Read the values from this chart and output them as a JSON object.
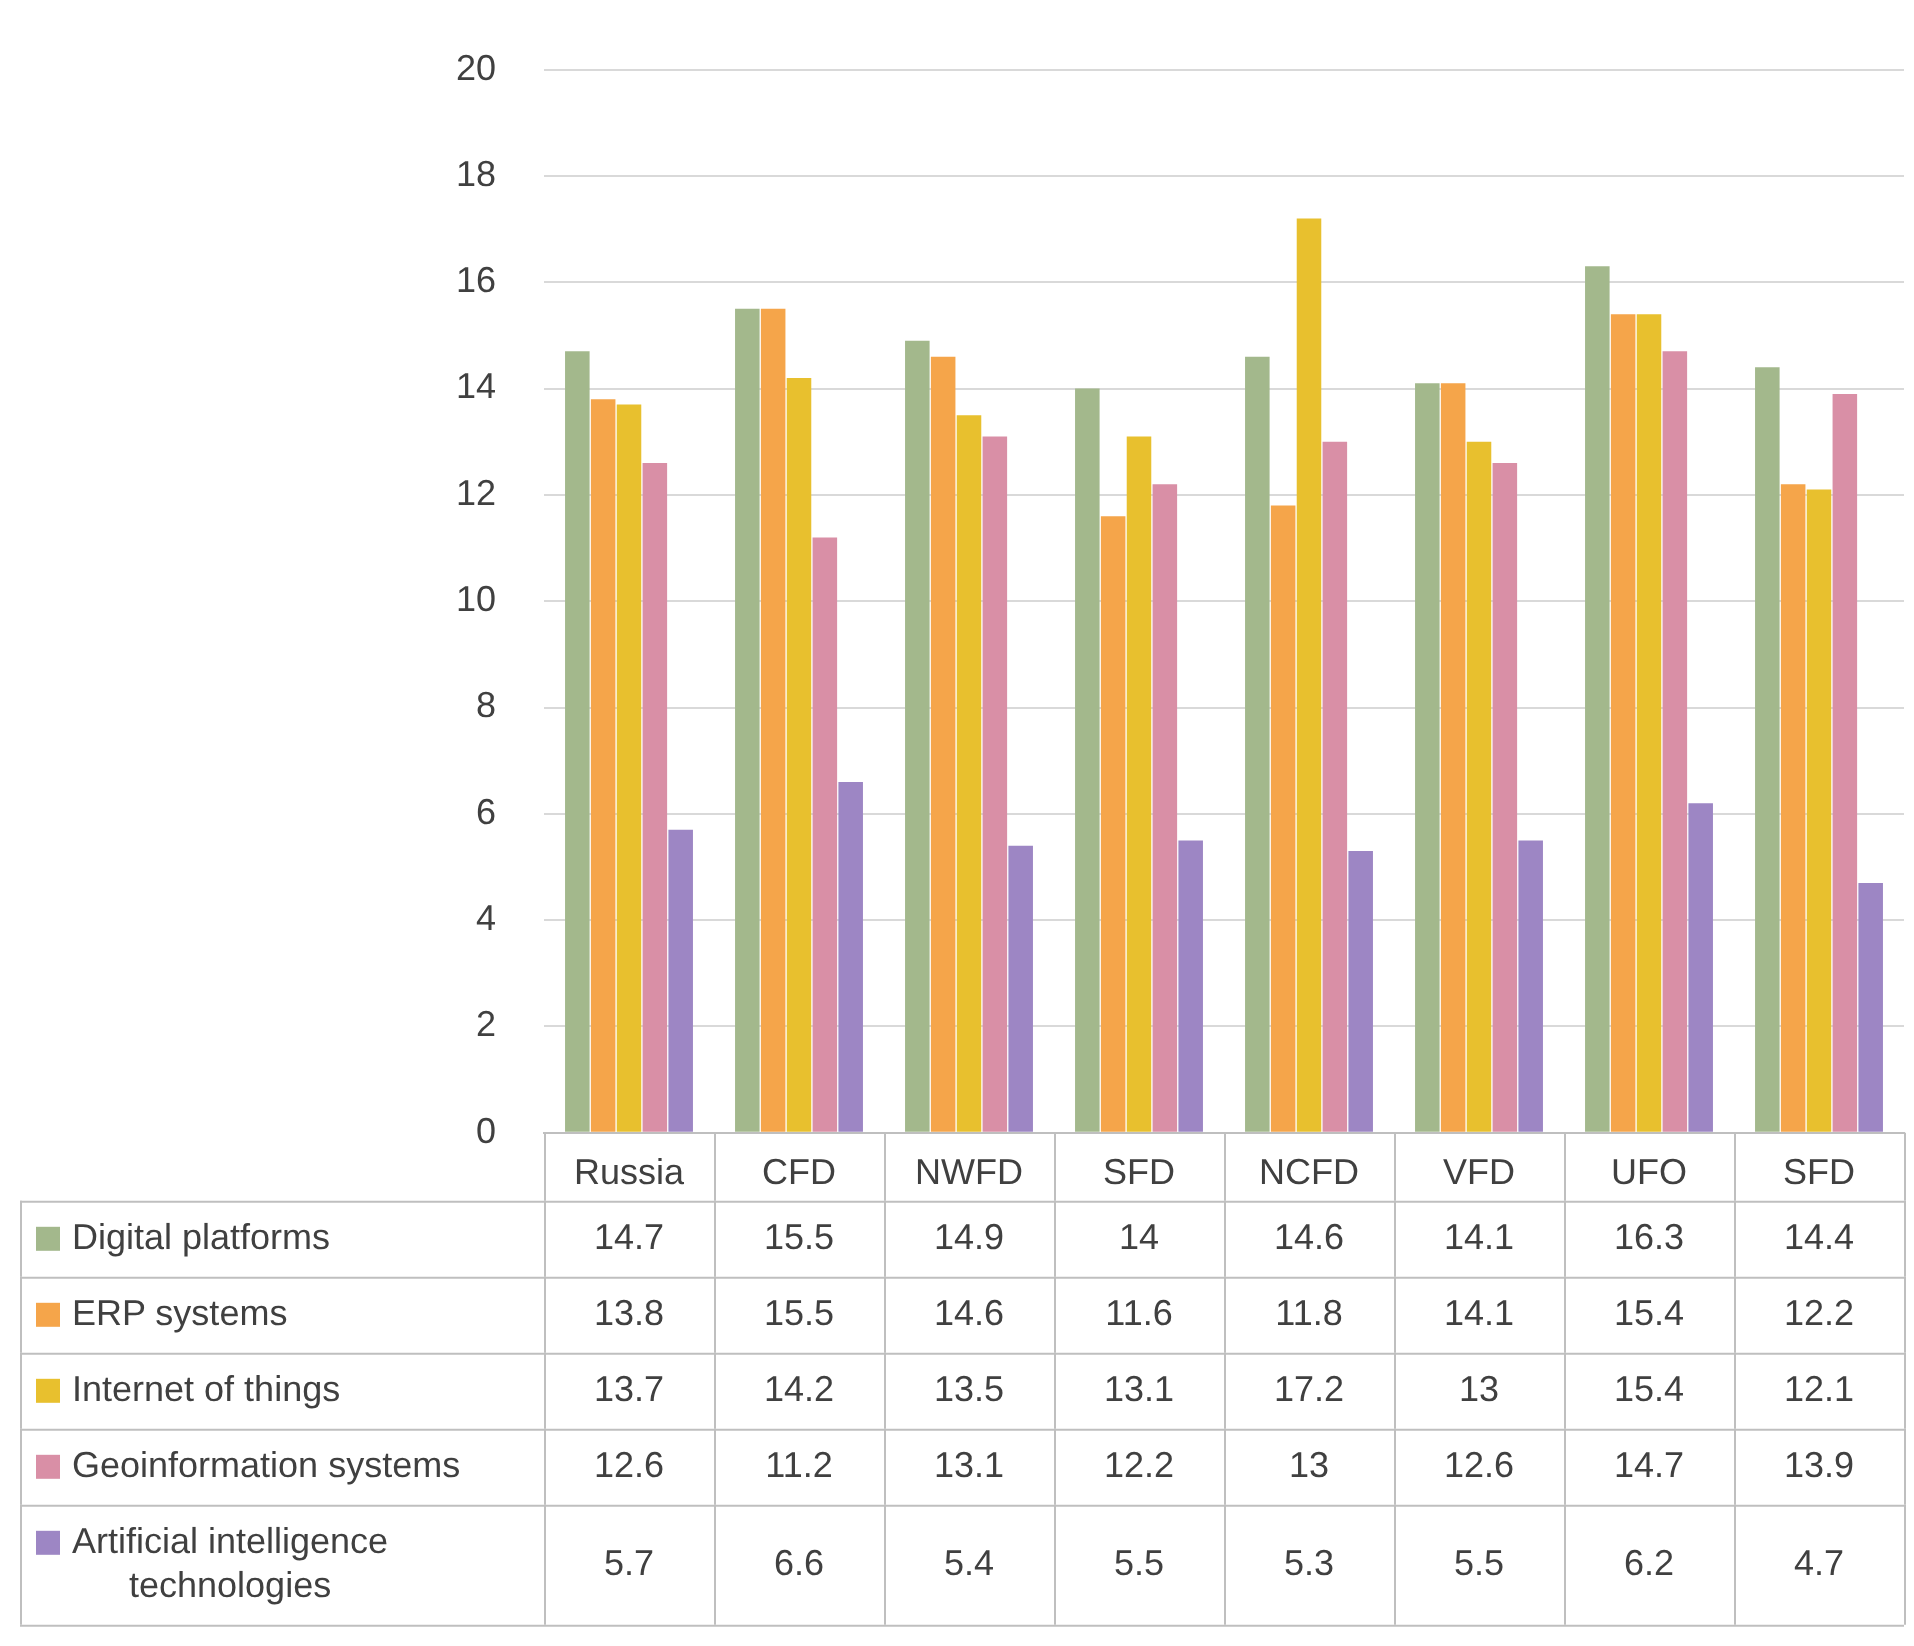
{
  "chart_data": {
    "type": "bar",
    "categories": [
      "Russia",
      "CFD",
      "NWFD",
      "SFD",
      "NCFD",
      "VFD",
      "UFO",
      "SFD"
    ],
    "series": [
      {
        "name": "Digital platforms",
        "color": "#a3b88c",
        "values": [
          14.7,
          15.5,
          14.9,
          14,
          14.6,
          14.1,
          16.3,
          14.4
        ]
      },
      {
        "name": "ERP systems",
        "color": "#f5a54a",
        "values": [
          13.8,
          15.5,
          14.6,
          11.6,
          11.8,
          14.1,
          15.4,
          12.2
        ]
      },
      {
        "name": "Internet of things",
        "color": "#e8c02e",
        "values": [
          13.7,
          14.2,
          13.5,
          13.1,
          17.2,
          13,
          15.4,
          12.1
        ]
      },
      {
        "name": "Geoinformation systems",
        "color": "#d98fa6",
        "values": [
          12.6,
          11.2,
          13.1,
          12.2,
          13,
          12.6,
          14.7,
          13.9
        ]
      },
      {
        "name": "Artificial intelligence technologies",
        "color": "#9d86c4",
        "values": [
          5.7,
          6.6,
          5.4,
          5.5,
          5.3,
          5.5,
          6.2,
          4.7
        ]
      }
    ],
    "ylim": [
      0,
      20
    ],
    "yticks": [
      0,
      2,
      4,
      6,
      8,
      10,
      12,
      14,
      16,
      18,
      20
    ],
    "grid": "y",
    "legend": "bottom",
    "data_labels": true
  }
}
